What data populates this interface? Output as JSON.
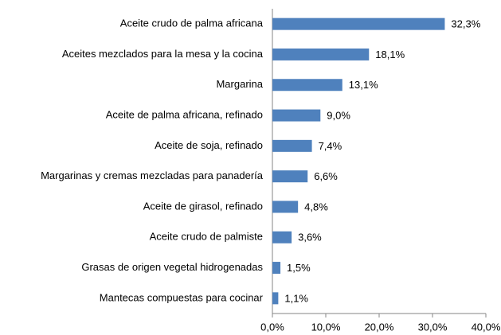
{
  "chart_data": {
    "type": "bar",
    "orientation": "horizontal",
    "categories": [
      "Aceite crudo de palma africana",
      "Aceites mezclados para la mesa y la cocina",
      "Margarina",
      "Aceite de palma africana, refinado",
      "Aceite de soja, refinado",
      "Margarinas y cremas mezcladas para panadería",
      "Aceite de girasol, refinado",
      "Aceite crudo de palmiste",
      "Grasas de origen vegetal hidrogenadas",
      "Mantecas compuestas para cocinar"
    ],
    "values": [
      32.3,
      18.1,
      13.1,
      9.0,
      7.4,
      6.6,
      4.8,
      3.6,
      1.5,
      1.1
    ],
    "value_labels": [
      "32,3%",
      "18,1%",
      "13,1%",
      "9,0%",
      "7,4%",
      "6,6%",
      "4,8%",
      "3,6%",
      "1,5%",
      "1,1%"
    ],
    "color": "#4f81bd",
    "xlim": [
      0,
      40
    ],
    "xticks": [
      {
        "value": 0,
        "label": "0,0%"
      },
      {
        "value": 10,
        "label": "10,0%"
      },
      {
        "value": 20,
        "label": "20,0%"
      },
      {
        "value": 30,
        "label": "30,0%"
      },
      {
        "value": 40,
        "label": "40,0%"
      }
    ],
    "grid": false
  }
}
